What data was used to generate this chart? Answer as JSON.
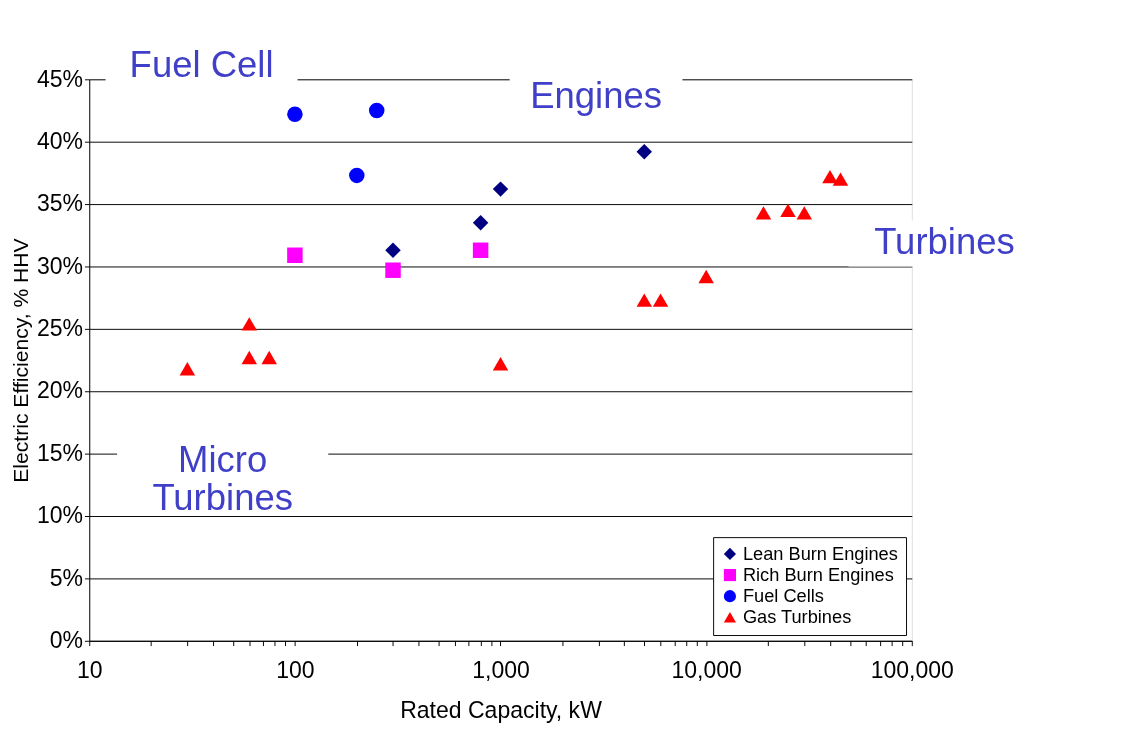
{
  "chart_data": {
    "type": "scatter",
    "xlabel": "Rated Capacity, kW",
    "ylabel": "Electric Efficiency, % HHV",
    "log": "x",
    "grid": "y",
    "legend": "bottom right",
    "xlim": [
      10,
      100000
    ],
    "ylim": [
      0,
      45
    ],
    "xticks": [
      10,
      {
        "value": 20,
        "label": null
      },
      {
        "value": 30,
        "label": null
      },
      {
        "value": 40,
        "label": null
      },
      {
        "value": 50,
        "label": null
      },
      {
        "value": 60,
        "label": null
      },
      {
        "value": 70,
        "label": null
      },
      {
        "value": 80,
        "label": null
      },
      {
        "value": 90,
        "label": null
      },
      100,
      {
        "value": 200,
        "label": null
      },
      {
        "value": 300,
        "label": null
      },
      {
        "value": 400,
        "label": null
      },
      {
        "value": 500,
        "label": null
      },
      {
        "value": 600,
        "label": null
      },
      {
        "value": 700,
        "label": null
      },
      {
        "value": 800,
        "label": null
      },
      {
        "value": 900,
        "label": null
      },
      {
        "value": 1000,
        "label": "1,000"
      },
      {
        "value": 2000,
        "label": null
      },
      {
        "value": 3000,
        "label": null
      },
      {
        "value": 4000,
        "label": null
      },
      {
        "value": 5000,
        "label": null
      },
      {
        "value": 6000,
        "label": null
      },
      {
        "value": 7000,
        "label": null
      },
      {
        "value": 8000,
        "label": null
      },
      {
        "value": 9000,
        "label": null
      },
      {
        "value": 10000,
        "label": "10,000"
      },
      {
        "value": 20000,
        "label": null
      },
      {
        "value": 30000,
        "label": null
      },
      {
        "value": 40000,
        "label": null
      },
      {
        "value": 50000,
        "label": null
      },
      {
        "value": 60000,
        "label": null
      },
      {
        "value": 70000,
        "label": null
      },
      {
        "value": 80000,
        "label": null
      },
      {
        "value": 90000,
        "label": null
      },
      {
        "value": 100000,
        "label": "100,000"
      }
    ],
    "yticks": [
      {
        "value": 0,
        "label": "0%"
      },
      {
        "value": 5,
        "label": "5%"
      },
      {
        "value": 10,
        "label": "10%"
      },
      {
        "value": 15,
        "label": "15%"
      },
      {
        "value": 20,
        "label": "20%"
      },
      {
        "value": 25,
        "label": "25%"
      },
      {
        "value": 30,
        "label": "30%"
      },
      {
        "value": 35,
        "label": "35%"
      },
      {
        "value": 40,
        "label": "40%"
      },
      {
        "value": 45,
        "label": "45%"
      }
    ],
    "series": [
      {
        "name": "Lean Burn Engines",
        "color": "#000080",
        "marker": "diamond",
        "x": [
          300,
          800,
          1000,
          5000
        ],
        "values": [
          31.3,
          33.5,
          36.2,
          39.2
        ]
      },
      {
        "name": "Rich Burn Engines",
        "color": "#ff00ff",
        "marker": "square",
        "x": [
          100,
          300,
          800
        ],
        "values": [
          30.9,
          29.7,
          31.3
        ]
      },
      {
        "name": "Fuel Cells",
        "color": "#0000ff",
        "marker": "circle",
        "x": [
          100,
          200,
          250
        ],
        "values": [
          42.2,
          37.3,
          42.5
        ]
      },
      {
        "name": "Gas Turbines",
        "color": "#ff0000",
        "marker": "triangle",
        "x": [
          30,
          60,
          60,
          75,
          1000,
          5000,
          6000,
          10000,
          19000,
          25000,
          30000,
          40000,
          45000
        ],
        "values": [
          21.8,
          25.4,
          22.7,
          22.7,
          22.2,
          27.3,
          27.3,
          29.2,
          34.3,
          34.5,
          34.3,
          37.2,
          37.0
        ]
      }
    ],
    "annotations": [
      "Fuel Cell",
      "Engines",
      "Turbines",
      "Micro\nTurbines"
    ]
  }
}
